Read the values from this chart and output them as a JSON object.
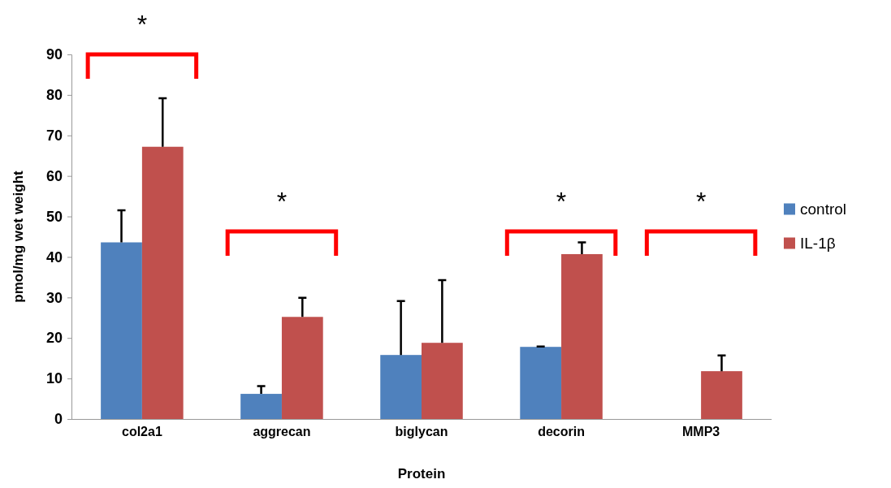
{
  "chart_data": {
    "type": "bar",
    "xlabel": "Protein",
    "ylabel": "pmol/mg wet weight",
    "categories": [
      "col2a1",
      "aggrecan",
      "biglycan",
      "decorin",
      "MMP3"
    ],
    "series": [
      {
        "name": "control",
        "color": "#4f81bd",
        "values": [
          43.6,
          6.2,
          15.8,
          17.8,
          null
        ],
        "errors": [
          [
            43.6,
            51.5
          ],
          [
            6.2,
            8.1
          ],
          [
            15.8,
            29.1
          ],
          [
            17.8,
            17.9
          ],
          null
        ]
      },
      {
        "name": "IL-1β",
        "color": "#c0504d",
        "values": [
          67.2,
          25.2,
          18.8,
          40.7,
          11.8
        ],
        "errors": [
          [
            67.2,
            79.2
          ],
          [
            25.2,
            29.9
          ],
          [
            18.8,
            34.3
          ],
          [
            40.7,
            43.6
          ],
          [
            11.8,
            15.7
          ]
        ]
      }
    ],
    "ylim": [
      0,
      90
    ],
    "yticks": [
      0,
      10,
      20,
      30,
      40,
      50,
      60,
      70,
      80,
      90
    ],
    "grid": false,
    "legend": "right",
    "annotations": [
      "*",
      "*",
      "*",
      "*"
    ]
  }
}
